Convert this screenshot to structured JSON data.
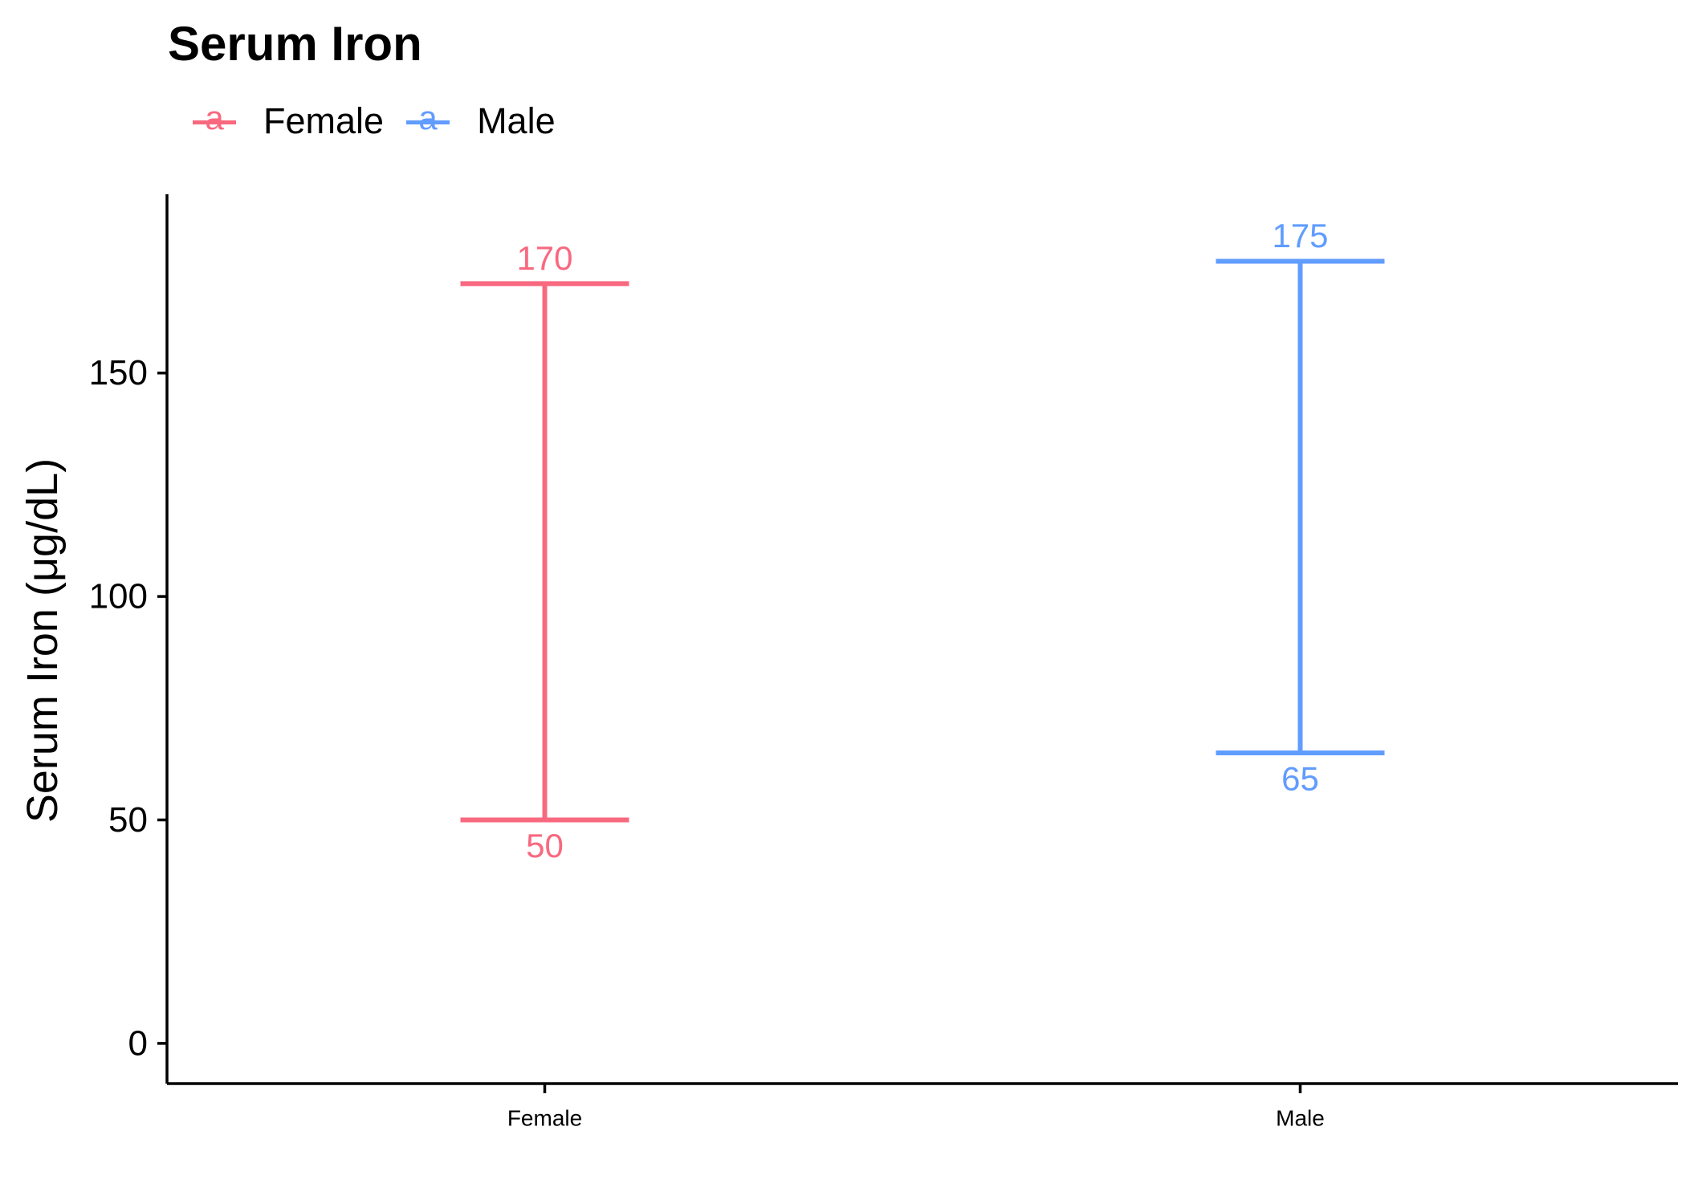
{
  "chart_data": {
    "type": "errorbar",
    "title": "Serum Iron",
    "xlabel": "",
    "ylabel": "Serum Iron (μg/dL)",
    "categories": [
      "Female",
      "Male"
    ],
    "series": [
      {
        "name": "Female",
        "category": "Female",
        "low": 50,
        "high": 170,
        "low_label": "50",
        "high_label": "170",
        "color": "#F8697F"
      },
      {
        "name": "Male",
        "category": "Male",
        "low": 65,
        "high": 175,
        "low_label": "65",
        "high_label": "175",
        "color": "#619CFF"
      }
    ],
    "yticks": [
      0,
      50,
      100,
      150
    ],
    "ytick_labels": [
      "0",
      "50",
      "100",
      "150"
    ],
    "ylim": [
      -9,
      190
    ],
    "grid": false,
    "legend": {
      "position": "top-left",
      "key_glyph": "a"
    }
  }
}
